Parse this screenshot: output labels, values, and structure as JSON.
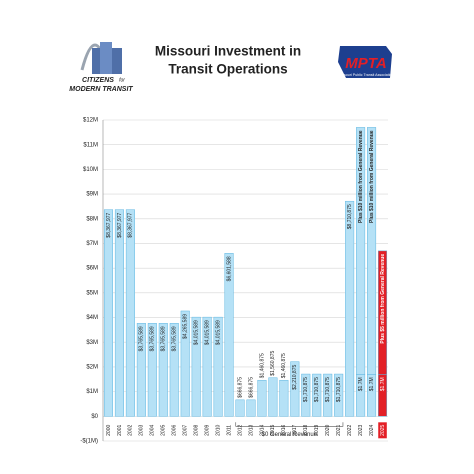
{
  "chart_data": {
    "type": "bar",
    "title_lines": [
      "Missouri Investment in",
      "Transit Operations"
    ],
    "logo_left": [
      "CITIZENS",
      "for",
      "MODERN TRANSIT"
    ],
    "logo_right": {
      "mark": "MPTA",
      "name": "Missouri Public Transit Association"
    },
    "categories": [
      "2000",
      "2001",
      "2002",
      "2003",
      "2004",
      "2005",
      "2006",
      "2007",
      "2008",
      "2009",
      "2010",
      "2011",
      "2012",
      "2013",
      "2014",
      "2015",
      "2016",
      "2017",
      "2018",
      "2019",
      "2020",
      "2021",
      "2022",
      "2023",
      "2024",
      "2025"
    ],
    "values": [
      8367977,
      8367977,
      8367977,
      3765589,
      3765589,
      3765589,
      3765589,
      4265589,
      4015589,
      4015589,
      4015589,
      6601588,
      666875,
      666875,
      1460875,
      1560875,
      1460875,
      2210875,
      1710875,
      1710875,
      1710875,
      1710875,
      8710875,
      1700000,
      1700000,
      1700000
    ],
    "value_labels": [
      "$8,367,977",
      "$8,367,977",
      "$8,367,977",
      "$3,765,589",
      "$3,765,589",
      "$3,765,589",
      "$3,765,589",
      "$4,265,589",
      "$4,015,589",
      "$4,015,589",
      "$4,015,589",
      "$6,601,588",
      "$666,875",
      "$666,875",
      "$1,460,875",
      "$1,560,875",
      "$1,460,875",
      "$2,210,875",
      "$1,710,875",
      "$1,710,875",
      "$1,710,875",
      "$1,710,875",
      "$8,710,875",
      "$1.7M",
      "$1.7M",
      "$1.7M"
    ],
    "extra_values": [
      null,
      null,
      null,
      null,
      null,
      null,
      null,
      null,
      null,
      null,
      null,
      null,
      null,
      null,
      null,
      null,
      null,
      null,
      null,
      null,
      null,
      null,
      null,
      10000000,
      10000000,
      5000000
    ],
    "extra_labels": [
      null,
      null,
      null,
      null,
      null,
      null,
      null,
      null,
      null,
      null,
      null,
      null,
      null,
      null,
      null,
      null,
      null,
      null,
      null,
      null,
      null,
      null,
      null,
      "Plus $10 million from General Revenue",
      "Plus $10 million from General Revenue",
      "Plus $5 million from General Revenue"
    ],
    "colors": [
      "#b5e1f6",
      "#b5e1f6",
      "#b5e1f6",
      "#b5e1f6",
      "#b5e1f6",
      "#b5e1f6",
      "#b5e1f6",
      "#b5e1f6",
      "#b5e1f6",
      "#b5e1f6",
      "#b5e1f6",
      "#b5e1f6",
      "#b5e1f6",
      "#b5e1f6",
      "#b5e1f6",
      "#b5e1f6",
      "#b5e1f6",
      "#b5e1f6",
      "#b5e1f6",
      "#b5e1f6",
      "#b5e1f6",
      "#b5e1f6",
      "#b5e1f6",
      "#b5e1f6",
      "#b5e1f6",
      "#e31f26"
    ],
    "annotation": {
      "text": "$0 General Revenue",
      "from": "2012",
      "to": "2021"
    },
    "ylim": [
      -1000000,
      12000000
    ],
    "yticks": [
      {
        "value": -1000000,
        "label": "-$(1M)"
      },
      {
        "value": 0,
        "label": "$0"
      },
      {
        "value": 1000000,
        "label": "$1M"
      },
      {
        "value": 2000000,
        "label": "$2M"
      },
      {
        "value": 3000000,
        "label": "$3M"
      },
      {
        "value": 4000000,
        "label": "$4M"
      },
      {
        "value": 5000000,
        "label": "$5M"
      },
      {
        "value": 6000000,
        "label": "$6M"
      },
      {
        "value": 7000000,
        "label": "$7M"
      },
      {
        "value": 8000000,
        "label": "$8M"
      },
      {
        "value": 9000000,
        "label": "$9M"
      },
      {
        "value": 10000000,
        "label": "$10M"
      },
      {
        "value": 11000000,
        "label": "$11M"
      },
      {
        "value": 12000000,
        "label": "$12M"
      }
    ],
    "grid": true
  }
}
